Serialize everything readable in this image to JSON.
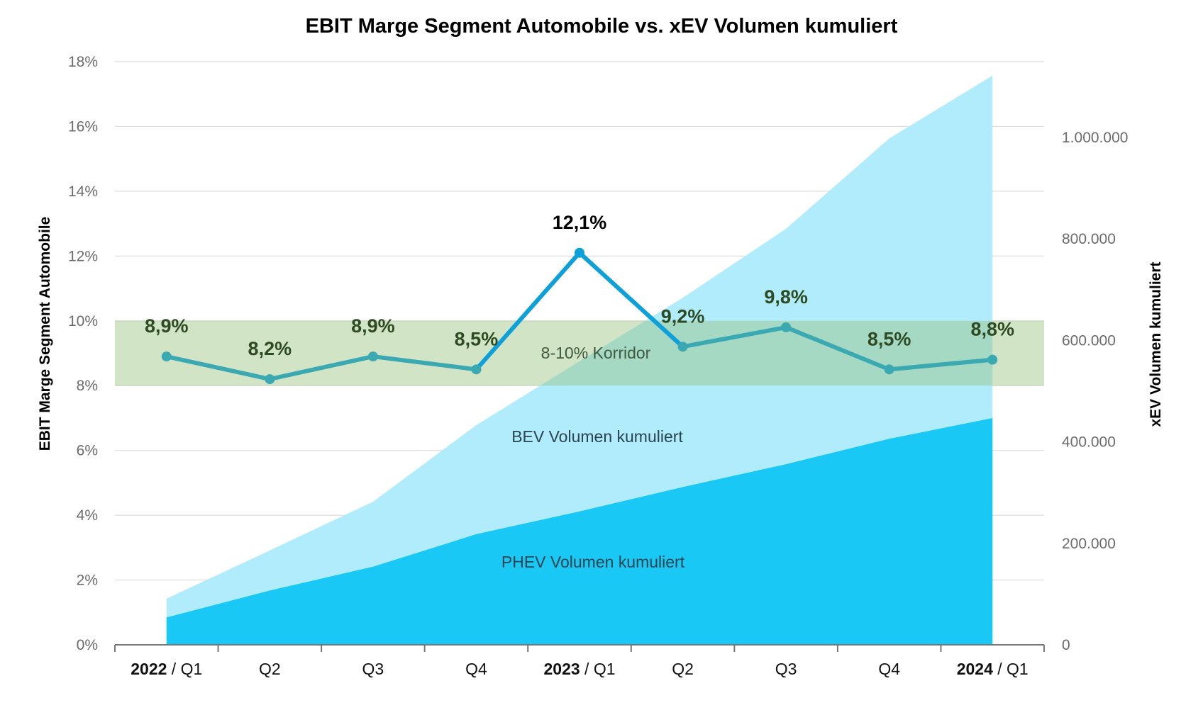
{
  "chart_data": {
    "type": "line+area",
    "title": "EBIT Marge Segment Automobile  vs.  xEV Volumen kumuliert",
    "ylabel_left": "EBIT Marge Segment Automobile",
    "ylabel_right": "xEV Volumen kumuliert",
    "categories": [
      {
        "year": "2022",
        "q": "Q1"
      },
      {
        "year": "",
        "q": "Q2"
      },
      {
        "year": "",
        "q": "Q3"
      },
      {
        "year": "",
        "q": "Q4"
      },
      {
        "year": "2023",
        "q": "Q1"
      },
      {
        "year": "",
        "q": "Q2"
      },
      {
        "year": "",
        "q": "Q3"
      },
      {
        "year": "",
        "q": "Q4"
      },
      {
        "year": "2024",
        "q": "Q1"
      }
    ],
    "ylim_left": [
      0,
      18
    ],
    "yticks_left": [
      "0%",
      "2%",
      "4%",
      "6%",
      "8%",
      "10%",
      "12%",
      "14%",
      "16%",
      "18%"
    ],
    "ylim_right": [
      0,
      1130000
    ],
    "yticks_right": [
      {
        "value": 0,
        "label": "0"
      },
      {
        "value": 200000,
        "label": "200.000"
      },
      {
        "value": 400000,
        "label": "400.000"
      },
      {
        "value": 600000,
        "label": "600.000"
      },
      {
        "value": 800000,
        "label": "800.000"
      },
      {
        "value": 1000000,
        "label": "1.000.000"
      }
    ],
    "corridor": {
      "from": 8,
      "to": 10,
      "label": "8-10% Korridor",
      "color": "rgba(150,192,122,0.43)"
    },
    "ebit_series": {
      "name": "EBIT Marge",
      "values": [
        8.9,
        8.2,
        8.9,
        8.5,
        12.1,
        9.2,
        9.8,
        8.5,
        8.8
      ],
      "labels": [
        "8,9%",
        "8,2%",
        "8,9%",
        "8,5%",
        "12,1%",
        "9,2%",
        "9,8%",
        "8,5%",
        "8,8%"
      ],
      "color": "#3aa9b2",
      "highlight_color": "#0ea0d8"
    },
    "series": [
      {
        "name": "PHEV Volumen kumuliert",
        "axis": "right",
        "type": "stacked-area",
        "color": "#1ac8f6",
        "values": [
          54000,
          107000,
          154000,
          218000,
          263000,
          311000,
          356000,
          406000,
          447000
        ]
      },
      {
        "name": "BEV Volumen kumuliert",
        "axis": "right",
        "type": "stacked-area",
        "color": "#b0ecfb",
        "values": [
          37000,
          79000,
          128000,
          215000,
          296000,
          373000,
          464000,
          592000,
          675000
        ]
      }
    ],
    "grid": true
  }
}
